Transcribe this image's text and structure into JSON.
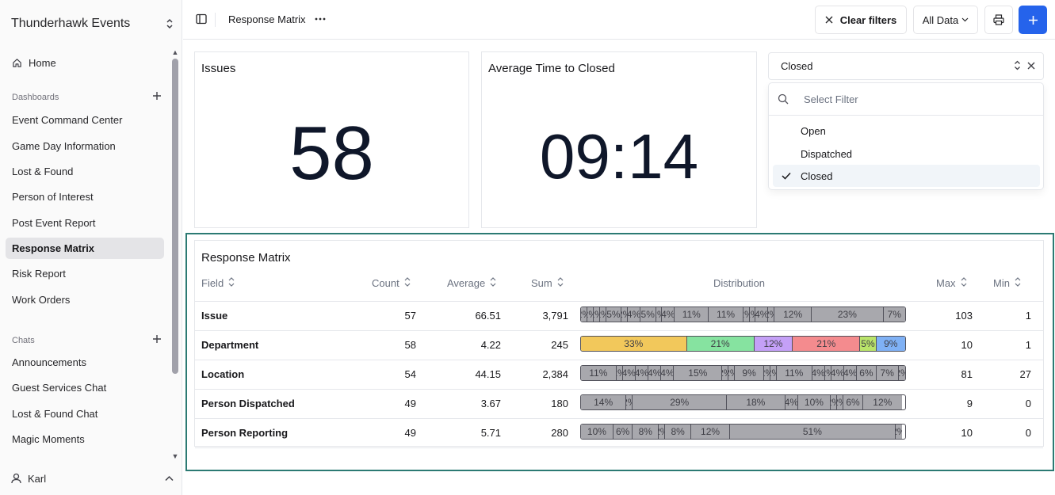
{
  "sidebar": {
    "workspace": "Thunderhawk Events",
    "home": "Home",
    "dashboards_label": "Dashboards",
    "dashboards": [
      "Event Command Center",
      "Game Day Information",
      "Lost & Found",
      "Person of Interest",
      "Post Event Report",
      "Response Matrix",
      "Risk Report",
      "Work Orders"
    ],
    "chats_label": "Chats",
    "chats": [
      "Announcements",
      "Guest Services Chat",
      "Lost & Found Chat",
      "Magic Moments"
    ],
    "user": "Karl"
  },
  "header": {
    "title": "Response Matrix",
    "clear_filters": "Clear filters",
    "all_data": "All Data"
  },
  "cards": {
    "issues_title": "Issues",
    "issues_value": "58",
    "avg_title": "Average Time to Closed",
    "avg_value": "09:14"
  },
  "filter": {
    "selected": "Closed",
    "search_placeholder": "Select Filter",
    "options": [
      "Open",
      "Dispatched",
      "Closed"
    ]
  },
  "matrix": {
    "title": "Response Matrix",
    "columns": {
      "field": "Field",
      "count": "Count",
      "average": "Average",
      "sum": "Sum",
      "distribution": "Distribution",
      "max": "Max",
      "min": "Min"
    },
    "rows": [
      {
        "field": "Issue",
        "count": "57",
        "average": "66.51",
        "sum": "3,791",
        "max": "103",
        "min": "1",
        "distribution": [
          {
            "label": "2%",
            "pct": 2
          },
          {
            "label": "2%",
            "pct": 2
          },
          {
            "label": "2%",
            "pct": 2
          },
          {
            "label": "2%",
            "pct": 2
          },
          {
            "label": "5%",
            "pct": 5
          },
          {
            "label": "2%",
            "pct": 2
          },
          {
            "label": "4%",
            "pct": 4
          },
          {
            "label": "5%",
            "pct": 5
          },
          {
            "label": "2%",
            "pct": 2
          },
          {
            "label": "4%",
            "pct": 4
          },
          {
            "label": "11%",
            "pct": 11
          },
          {
            "label": "11%",
            "pct": 11
          },
          {
            "label": "2%",
            "pct": 2
          },
          {
            "label": "2%",
            "pct": 2
          },
          {
            "label": "4%",
            "pct": 4
          },
          {
            "label": "2%",
            "pct": 2
          },
          {
            "label": "12%",
            "pct": 12
          },
          {
            "label": "23%",
            "pct": 23
          },
          {
            "label": "7%",
            "pct": 7
          }
        ]
      },
      {
        "field": "Department",
        "count": "58",
        "average": "4.22",
        "sum": "245",
        "max": "10",
        "min": "1",
        "distribution": [
          {
            "label": "33%",
            "pct": 33,
            "color": "#f2c85b"
          },
          {
            "label": "21%",
            "pct": 21,
            "color": "#86e3a0"
          },
          {
            "label": "12%",
            "pct": 12,
            "color": "#c4a0f7"
          },
          {
            "label": "21%",
            "pct": 21,
            "color": "#f48b8e"
          },
          {
            "label": "5%",
            "pct": 5,
            "color": "#b9e36a"
          },
          {
            "label": "9%",
            "pct": 9,
            "color": "#7fb1f5"
          }
        ]
      },
      {
        "field": "Location",
        "count": "54",
        "average": "44.15",
        "sum": "2,384",
        "max": "81",
        "min": "27",
        "distribution": [
          {
            "label": "11%",
            "pct": 11
          },
          {
            "label": "2%",
            "pct": 2
          },
          {
            "label": "4%",
            "pct": 4
          },
          {
            "label": "4%",
            "pct": 4
          },
          {
            "label": "4%",
            "pct": 4
          },
          {
            "label": "4%",
            "pct": 4
          },
          {
            "label": "15%",
            "pct": 15
          },
          {
            "label": "2%",
            "pct": 2
          },
          {
            "label": "2%",
            "pct": 2
          },
          {
            "label": "9%",
            "pct": 9
          },
          {
            "label": "2%",
            "pct": 2
          },
          {
            "label": "2%",
            "pct": 2
          },
          {
            "label": "11%",
            "pct": 11
          },
          {
            "label": "4%",
            "pct": 4
          },
          {
            "label": "2%",
            "pct": 2
          },
          {
            "label": "4%",
            "pct": 4
          },
          {
            "label": "4%",
            "pct": 4
          },
          {
            "label": "6%",
            "pct": 6
          },
          {
            "label": "7%",
            "pct": 7
          },
          {
            "label": "2%",
            "pct": 2
          }
        ]
      },
      {
        "field": "Person Dispatched",
        "count": "49",
        "average": "3.67",
        "sum": "180",
        "max": "9",
        "min": "0",
        "distribution": [
          {
            "label": "14%",
            "pct": 14
          },
          {
            "label": "2%",
            "pct": 2
          },
          {
            "label": "29%",
            "pct": 29
          },
          {
            "label": "18%",
            "pct": 18
          },
          {
            "label": "4%",
            "pct": 4
          },
          {
            "label": "10%",
            "pct": 10
          },
          {
            "label": "2%",
            "pct": 2
          },
          {
            "label": "2%",
            "pct": 2
          },
          {
            "label": "6%",
            "pct": 6
          },
          {
            "label": "12%",
            "pct": 12
          }
        ]
      },
      {
        "field": "Person Reporting",
        "count": "49",
        "average": "5.71",
        "sum": "280",
        "max": "10",
        "min": "0",
        "distribution": [
          {
            "label": "10%",
            "pct": 10
          },
          {
            "label": "6%",
            "pct": 6
          },
          {
            "label": "8%",
            "pct": 8
          },
          {
            "label": "2%",
            "pct": 2
          },
          {
            "label": "8%",
            "pct": 8
          },
          {
            "label": "12%",
            "pct": 12
          },
          {
            "label": "51%",
            "pct": 51
          },
          {
            "label": "2%",
            "pct": 2
          }
        ]
      }
    ]
  },
  "colors": {
    "accent": "#2563eb",
    "highlight_outline": "#2c7a73",
    "bar_gray": "#a8a8ad",
    "active_nav": "#e4e4e7"
  },
  "icons": [
    "chevron-updown-icon",
    "home-icon",
    "plus-icon",
    "sidebar-toggle-icon",
    "more-icon",
    "close-icon",
    "chevron-down-icon",
    "printer-icon",
    "search-icon",
    "check-icon",
    "user-icon",
    "chevron-up-icon",
    "sort-icon"
  ]
}
